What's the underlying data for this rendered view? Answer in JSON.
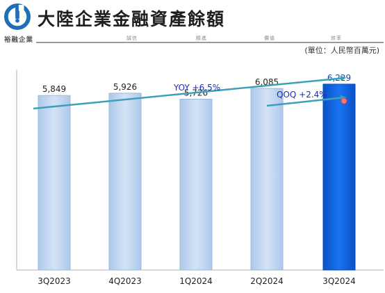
{
  "header": {
    "title": "大陸企業金融資產餘額",
    "brand": "裕融企業",
    "motto": [
      "誠信",
      "精進",
      "價值",
      "效率"
    ],
    "unit": "(單位：人民幣百萬元)"
  },
  "chart_data": {
    "type": "bar",
    "categories": [
      "3Q2023",
      "4Q2023",
      "1Q2024",
      "2Q2024",
      "3Q2024"
    ],
    "values": [
      5849,
      5926,
      5726,
      6085,
      6229
    ],
    "value_labels": [
      "5,849",
      "5,926",
      "5,726",
      "6,085",
      "6,229"
    ],
    "highlight_index": 4,
    "ylim": [
      0,
      6600
    ],
    "grid": false,
    "annotations": {
      "yoy": "YOY +6.5%",
      "qoq": "QOQ +2.4%"
    }
  },
  "colors": {
    "bar": "#c6d9f1",
    "bar_highlight": "#0a5fe0",
    "arrow": "#3ea0b8",
    "annotation_text": "#1a2dbf",
    "logo": "#1f6fb8"
  }
}
